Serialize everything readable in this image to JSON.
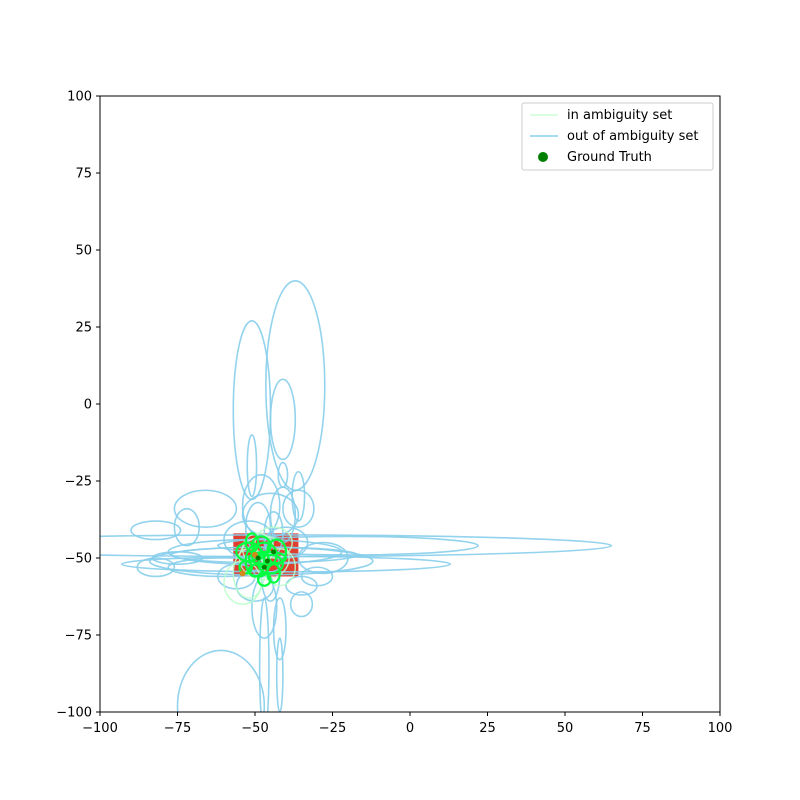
{
  "chart_data": {
    "type": "scatter",
    "title": "",
    "xlabel": "",
    "ylabel": "",
    "xlim": [
      -100,
      100
    ],
    "ylim": [
      -100,
      100
    ],
    "xticks": [
      -100,
      -75,
      -50,
      -25,
      0,
      25,
      50,
      75,
      100
    ],
    "yticks": [
      -100,
      -75,
      -50,
      -25,
      0,
      25,
      50,
      75,
      100
    ],
    "xtick_labels": [
      "−100",
      "−75",
      "−50",
      "−25",
      "0",
      "25",
      "50",
      "75",
      "100"
    ],
    "ytick_labels": [
      "−100",
      "−75",
      "−50",
      "−25",
      "0",
      "25",
      "50",
      "75",
      "100"
    ],
    "grid": false,
    "legend_position": "top-right",
    "colors": {
      "in_set": "#b8ffc8",
      "out_set": "#87ceeb",
      "ground_truth": "#008000",
      "bright_green": "#00ff40",
      "red_fill": "#dd2a1a",
      "orange_marker": "#d4871a"
    },
    "legend": [
      {
        "label": "in ambiguity set",
        "kind": "line",
        "color": "#ccffd5"
      },
      {
        "label": "out of ambiguity set",
        "kind": "line",
        "color": "#87ceeb"
      },
      {
        "label": "Ground Truth",
        "kind": "dot",
        "color": "#008000"
      }
    ],
    "red_region": {
      "x": [
        -57,
        -36
      ],
      "y": [
        -56,
        -42
      ]
    },
    "ground_truth": [
      {
        "x": -49,
        "y": -50
      },
      {
        "x": -46,
        "y": -51
      },
      {
        "x": -44,
        "y": -48
      },
      {
        "x": -47,
        "y": -53
      }
    ],
    "ellipses_out": [
      {
        "cx": -37,
        "cy": 6,
        "rx": 9.5,
        "ry": 34
      },
      {
        "cx": -41,
        "cy": -5,
        "rx": 4,
        "ry": 13
      },
      {
        "cx": -51,
        "cy": -2,
        "rx": 6,
        "ry": 29
      },
      {
        "cx": -51,
        "cy": -20,
        "rx": 1.5,
        "ry": 10
      },
      {
        "cx": -41,
        "cy": -23,
        "rx": 1.5,
        "ry": 4
      },
      {
        "cx": -36,
        "cy": -30,
        "rx": 2,
        "ry": 8
      },
      {
        "cx": -48,
        "cy": -33,
        "rx": 6,
        "ry": 10
      },
      {
        "cx": -36,
        "cy": -34,
        "rx": 5,
        "ry": 6
      },
      {
        "cx": -41,
        "cy": -36,
        "rx": 4,
        "ry": 9
      },
      {
        "cx": -45,
        "cy": -36,
        "rx": 9,
        "ry": 7
      },
      {
        "cx": -66,
        "cy": -34,
        "rx": 10,
        "ry": 6
      },
      {
        "cx": -72,
        "cy": -40,
        "rx": 4,
        "ry": 6
      },
      {
        "cx": -82,
        "cy": -41,
        "rx": 8,
        "ry": 3
      },
      {
        "cx": -82,
        "cy": -53,
        "rx": 6,
        "ry": 3
      },
      {
        "cx": -45,
        "cy": -46,
        "rx": 110,
        "ry": 3.5
      },
      {
        "cx": -20,
        "cy": -46,
        "rx": 42,
        "ry": 3
      },
      {
        "cx": -47,
        "cy": -49,
        "rx": 30,
        "ry": 2.5
      },
      {
        "cx": -48,
        "cy": -51,
        "rx": 36,
        "ry": 4.5
      },
      {
        "cx": -40,
        "cy": -52,
        "rx": 53,
        "ry": 2.5
      },
      {
        "cx": -60,
        "cy": -53,
        "rx": 18,
        "ry": 3
      },
      {
        "cx": -75,
        "cy": -50,
        "rx": 8,
        "ry": 2
      },
      {
        "cx": -50,
        "cy": -48,
        "rx": 28,
        "ry": 4
      },
      {
        "cx": -28,
        "cy": -50,
        "rx": 8,
        "ry": 5
      },
      {
        "cx": -30,
        "cy": -56,
        "rx": 5,
        "ry": 3
      },
      {
        "cx": -35,
        "cy": -59,
        "rx": 5,
        "ry": 3
      },
      {
        "cx": -35,
        "cy": -65,
        "rx": 3.5,
        "ry": 4
      },
      {
        "cx": -42,
        "cy": -73,
        "rx": 2,
        "ry": 10
      },
      {
        "cx": -47,
        "cy": -66,
        "rx": 4,
        "ry": 10
      },
      {
        "cx": -47,
        "cy": -85,
        "rx": 1.5,
        "ry": 22
      },
      {
        "cx": -61,
        "cy": -98,
        "rx": 14,
        "ry": 18
      },
      {
        "cx": -42,
        "cy": -88,
        "rx": 1,
        "ry": 12
      },
      {
        "cx": -50,
        "cy": -59,
        "rx": 6,
        "ry": 5
      },
      {
        "cx": -56,
        "cy": -56,
        "rx": 6,
        "ry": 4
      },
      {
        "cx": -45,
        "cy": -55,
        "rx": 3,
        "ry": 9
      },
      {
        "cx": -52,
        "cy": -44,
        "rx": 8,
        "ry": 6
      },
      {
        "cx": -40,
        "cy": -45,
        "rx": 7,
        "ry": 5
      },
      {
        "cx": -49,
        "cy": -40,
        "rx": 4,
        "ry": 8
      },
      {
        "cx": -44,
        "cy": -42,
        "rx": 3,
        "ry": 7
      }
    ],
    "ellipses_in": [
      {
        "cx": -47,
        "cy": -50,
        "rx": 8,
        "ry": 7
      },
      {
        "cx": -52,
        "cy": -55,
        "rx": 5,
        "ry": 8
      },
      {
        "cx": -44,
        "cy": -45,
        "rx": 6,
        "ry": 5
      },
      {
        "cx": -54,
        "cy": -58,
        "rx": 6,
        "ry": 7
      },
      {
        "cx": -49,
        "cy": -47,
        "rx": 5,
        "ry": 5
      },
      {
        "cx": -42,
        "cy": -53,
        "rx": 5,
        "ry": 6
      }
    ],
    "ellipses_bright": [
      {
        "cx": -47,
        "cy": -49,
        "rx": 4,
        "ry": 4
      },
      {
        "cx": -50,
        "cy": -51,
        "rx": 3,
        "ry": 5
      },
      {
        "cx": -45,
        "cy": -52,
        "rx": 4,
        "ry": 3
      },
      {
        "cx": -48,
        "cy": -46,
        "rx": 3,
        "ry": 3
      },
      {
        "cx": -52,
        "cy": -48,
        "rx": 4,
        "ry": 3
      },
      {
        "cx": -43,
        "cy": -48,
        "rx": 3,
        "ry": 4
      },
      {
        "cx": -49,
        "cy": -54,
        "rx": 3,
        "ry": 2
      },
      {
        "cx": -46,
        "cy": -50,
        "rx": 6,
        "ry": 2
      },
      {
        "cx": -51,
        "cy": -45,
        "rx": 2,
        "ry": 3
      },
      {
        "cx": -44,
        "cy": -55,
        "rx": 2,
        "ry": 3
      },
      {
        "cx": -53,
        "cy": -53,
        "rx": 2,
        "ry": 2
      },
      {
        "cx": -47,
        "cy": -57,
        "rx": 2,
        "ry": 2
      }
    ],
    "orange_markers": [
      {
        "x": -54,
        "y": -55
      },
      {
        "x": -50,
        "y": -49
      }
    ]
  }
}
